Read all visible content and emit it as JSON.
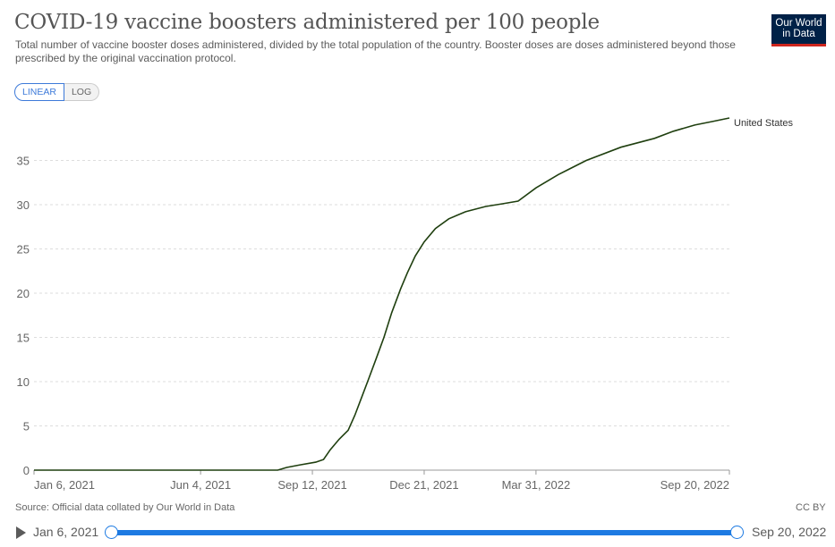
{
  "header": {
    "title": "COVID-19 vaccine boosters administered per 100 people",
    "subtitle": "Total number of vaccine booster doses administered, divided by the total population of the country. Booster doses are doses administered beyond those prescribed by the original vaccination protocol.",
    "logo_line1": "Our World",
    "logo_line2": "in Data"
  },
  "controls": {
    "linear_label": "LINEAR",
    "log_label": "LOG",
    "selected": "LINEAR"
  },
  "footer": {
    "source": "Source: Official data collated by Our World in Data",
    "license": "CC BY"
  },
  "timeline": {
    "start_label": "Jan 6, 2021",
    "end_label": "Sep 20, 2022"
  },
  "colors": {
    "series": "#1f3f0f",
    "accent": "#1d7ae2",
    "logo_bg": "#002147",
    "logo_bar": "#ce261e"
  },
  "chart_data": {
    "type": "line",
    "title": "COVID-19 vaccine boosters administered per 100 people",
    "x_start": "2021-01-06",
    "x_end": "2022-09-20",
    "xticks": [
      "Jan 6, 2021",
      "Jun 4, 2021",
      "Sep 12, 2021",
      "Dec 21, 2021",
      "Mar 31, 2022",
      "Sep 20, 2022"
    ],
    "xtick_dates": [
      "2021-01-06",
      "2021-06-04",
      "2021-09-12",
      "2021-12-21",
      "2022-03-31",
      "2022-09-20"
    ],
    "ylim": [
      0,
      40
    ],
    "yticks": [
      0,
      5,
      10,
      15,
      20,
      25,
      30,
      35
    ],
    "grid": "horizontal dashed",
    "series": [
      {
        "name": "United States",
        "points": [
          [
            "2021-01-06",
            0
          ],
          [
            "2021-08-12",
            0
          ],
          [
            "2021-08-20",
            0.3
          ],
          [
            "2021-09-01",
            0.6
          ],
          [
            "2021-09-15",
            0.9
          ],
          [
            "2021-09-22",
            1.2
          ],
          [
            "2021-09-28",
            2.3
          ],
          [
            "2021-10-06",
            3.5
          ],
          [
            "2021-10-14",
            4.5
          ],
          [
            "2021-10-20",
            6.2
          ],
          [
            "2021-10-26",
            8.2
          ],
          [
            "2021-11-01",
            10.2
          ],
          [
            "2021-11-08",
            12.6
          ],
          [
            "2021-11-15",
            15.0
          ],
          [
            "2021-11-22",
            17.8
          ],
          [
            "2021-11-30",
            20.5
          ],
          [
            "2021-12-06",
            22.3
          ],
          [
            "2021-12-13",
            24.2
          ],
          [
            "2021-12-21",
            25.8
          ],
          [
            "2021-12-31",
            27.3
          ],
          [
            "2022-01-12",
            28.4
          ],
          [
            "2022-01-27",
            29.2
          ],
          [
            "2022-02-14",
            29.8
          ],
          [
            "2022-03-01",
            30.1
          ],
          [
            "2022-03-15",
            30.4
          ],
          [
            "2022-03-31",
            31.9
          ],
          [
            "2022-04-20",
            33.4
          ],
          [
            "2022-05-15",
            35.0
          ],
          [
            "2022-06-15",
            36.5
          ],
          [
            "2022-07-15",
            37.5
          ],
          [
            "2022-08-01",
            38.3
          ],
          [
            "2022-08-20",
            39.0
          ],
          [
            "2022-09-05",
            39.4
          ],
          [
            "2022-09-20",
            39.8
          ]
        ]
      }
    ]
  }
}
